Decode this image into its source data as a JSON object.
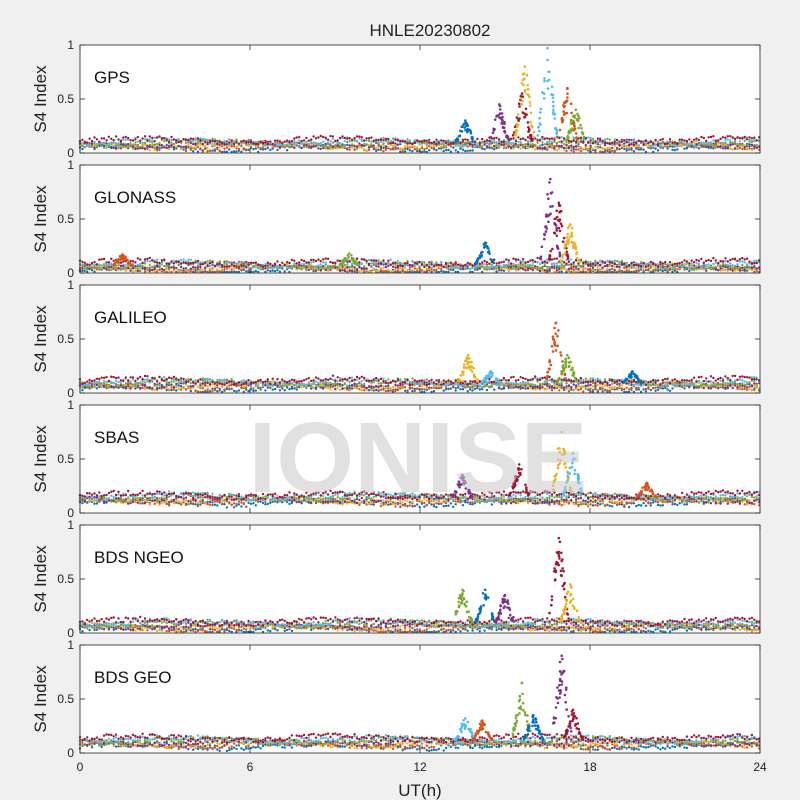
{
  "figure_title": "HNLE20230802",
  "watermark_text": "IONISE",
  "chart_data": [
    {
      "type": "scatter",
      "title": "GPS",
      "xlabel": "UT(h)",
      "ylabel": "S4 Index",
      "xlim": [
        0,
        24
      ],
      "ylim": [
        0,
        1
      ],
      "xticks": [
        0,
        6,
        12,
        18,
        24
      ],
      "yticks": [
        0,
        0.5,
        1
      ],
      "ytick_labels": [
        "0",
        "0.5",
        "1"
      ],
      "baseline": 0.08,
      "bumps": [
        {
          "x": 13.6,
          "y": 0.3
        },
        {
          "x": 14.8,
          "y": 0.45
        },
        {
          "x": 15.6,
          "y": 0.55
        },
        {
          "x": 15.7,
          "y": 0.8
        },
        {
          "x": 16.5,
          "y": 0.97
        },
        {
          "x": 17.2,
          "y": 0.6
        },
        {
          "x": 17.5,
          "y": 0.4
        }
      ]
    },
    {
      "type": "scatter",
      "title": "GLONASS",
      "xlabel": "UT(h)",
      "ylabel": "S4 Index",
      "xlim": [
        0,
        24
      ],
      "ylim": [
        0,
        1
      ],
      "xticks": [
        0,
        6,
        12,
        18,
        24
      ],
      "yticks": [
        0,
        0.5,
        1
      ],
      "ytick_labels": [
        "0",
        "0.5",
        "1"
      ],
      "baseline": 0.06,
      "bumps": [
        {
          "x": 1.5,
          "y": 0.17
        },
        {
          "x": 9.5,
          "y": 0.18
        },
        {
          "x": 14.3,
          "y": 0.28
        },
        {
          "x": 16.6,
          "y": 0.87
        },
        {
          "x": 16.9,
          "y": 0.65
        },
        {
          "x": 17.3,
          "y": 0.45
        }
      ]
    },
    {
      "type": "scatter",
      "title": "GALILEO",
      "xlabel": "UT(h)",
      "ylabel": "S4 Index",
      "xlim": [
        0,
        24
      ],
      "ylim": [
        0,
        1
      ],
      "xticks": [
        0,
        6,
        12,
        18,
        24
      ],
      "yticks": [
        0,
        0.5,
        1
      ],
      "ytick_labels": [
        "0",
        "0.5",
        "1"
      ],
      "baseline": 0.08,
      "bumps": [
        {
          "x": 13.7,
          "y": 0.35
        },
        {
          "x": 14.5,
          "y": 0.2
        },
        {
          "x": 16.8,
          "y": 0.65
        },
        {
          "x": 17.2,
          "y": 0.35
        },
        {
          "x": 19.5,
          "y": 0.2
        }
      ]
    },
    {
      "type": "scatter",
      "title": "SBAS",
      "xlabel": "UT(h)",
      "ylabel": "S4 Index",
      "xlim": [
        0,
        24
      ],
      "ylim": [
        0,
        1
      ],
      "xticks": [
        0,
        6,
        12,
        18,
        24
      ],
      "yticks": [
        0,
        0.5,
        1
      ],
      "ytick_labels": [
        "0",
        "0.5",
        "1"
      ],
      "baseline": 0.13,
      "bumps": [
        {
          "x": 13.5,
          "y": 0.35
        },
        {
          "x": 15.5,
          "y": 0.45
        },
        {
          "x": 17.0,
          "y": 0.75
        },
        {
          "x": 17.4,
          "y": 0.55
        },
        {
          "x": 20.0,
          "y": 0.28
        }
      ]
    },
    {
      "type": "scatter",
      "title": "BDS NGEO",
      "xlabel": "UT(h)",
      "ylabel": "S4 Index",
      "xlim": [
        0,
        24
      ],
      "ylim": [
        0,
        1
      ],
      "xticks": [
        0,
        6,
        12,
        18,
        24
      ],
      "yticks": [
        0,
        0.5,
        1
      ],
      "ytick_labels": [
        "0",
        "0.5",
        "1"
      ],
      "baseline": 0.07,
      "bumps": [
        {
          "x": 13.5,
          "y": 0.4
        },
        {
          "x": 14.3,
          "y": 0.4
        },
        {
          "x": 15.0,
          "y": 0.35
        },
        {
          "x": 16.9,
          "y": 0.88
        },
        {
          "x": 17.3,
          "y": 0.45
        }
      ]
    },
    {
      "type": "scatter",
      "title": "BDS GEO",
      "xlabel": "UT(h)",
      "ylabel": "S4 Index",
      "xlim": [
        0,
        24
      ],
      "ylim": [
        0,
        1
      ],
      "xticks": [
        0,
        6,
        12,
        18,
        24
      ],
      "yticks": [
        0,
        0.5,
        1
      ],
      "ytick_labels": [
        "0",
        "0.5",
        "1"
      ],
      "baseline": 0.1,
      "bumps": [
        {
          "x": 13.6,
          "y": 0.32
        },
        {
          "x": 14.2,
          "y": 0.3
        },
        {
          "x": 15.6,
          "y": 0.65
        },
        {
          "x": 16.0,
          "y": 0.35
        },
        {
          "x": 17.0,
          "y": 0.9
        },
        {
          "x": 17.4,
          "y": 0.4
        }
      ]
    }
  ],
  "series_colors": [
    "#0072BD",
    "#D95319",
    "#EDB120",
    "#7E2F8E",
    "#77AC30",
    "#4DBEEE",
    "#A2142F"
  ]
}
